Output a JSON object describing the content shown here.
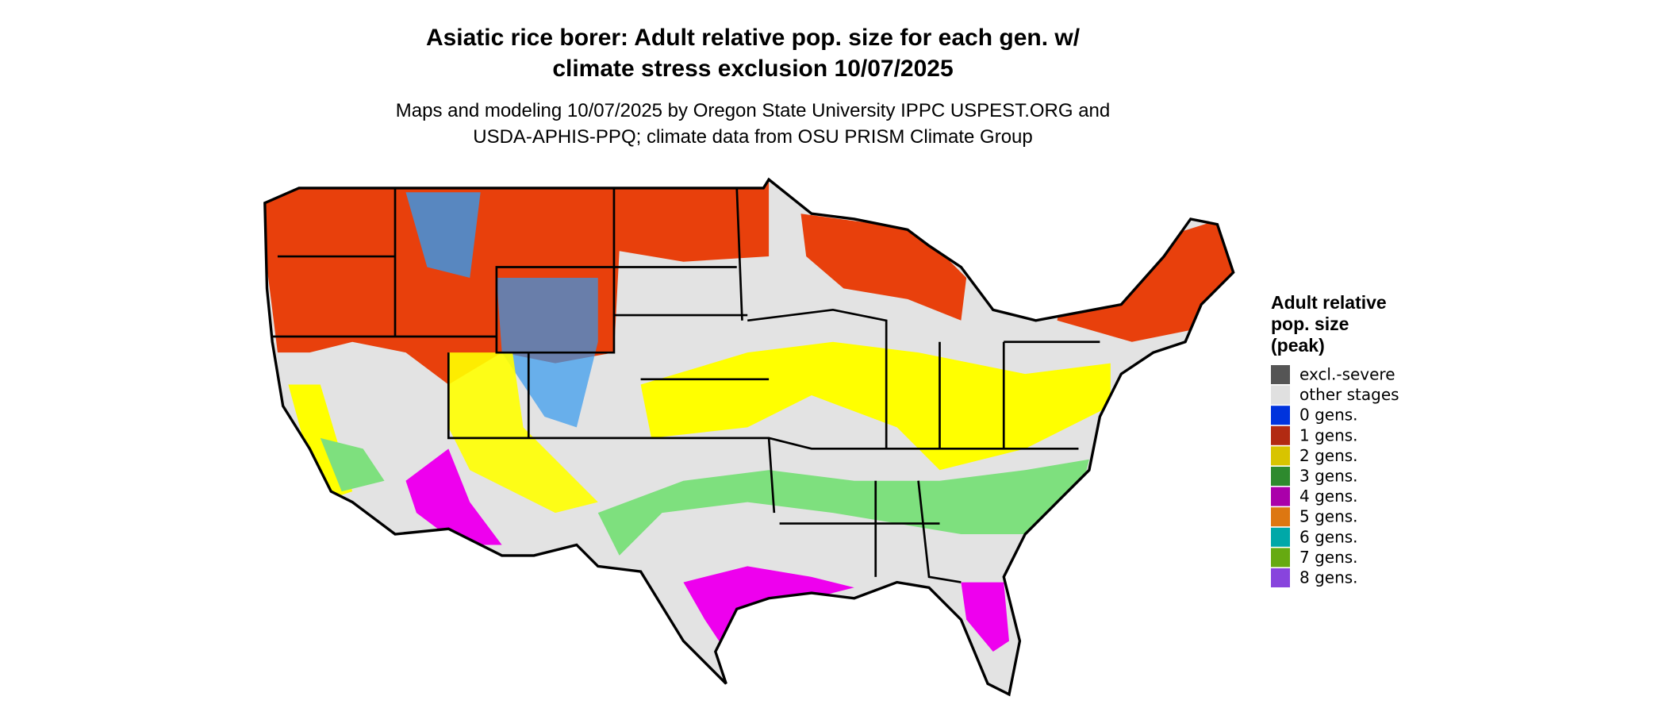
{
  "title": [
    "Asiatic rice borer: Adult relative pop. size for each gen. w/",
    "climate stress exclusion 10/07/2025"
  ],
  "subtitle": [
    "Maps and modeling 10/07/2025 by Oregon State University IPPC USPEST.ORG and",
    "USDA-APHIS-PPQ; climate data from OSU PRISM Climate Group"
  ],
  "legend": {
    "title": [
      "Adult relative",
      "pop. size",
      "(peak)"
    ],
    "items": [
      {
        "label": "excl.-severe",
        "color": "#555555"
      },
      {
        "label": "other stages",
        "color": "#e0e0e0"
      },
      {
        "label": "0 gens.",
        "color": "#0033dd"
      },
      {
        "label": "1 gens.",
        "color": "#b22a12"
      },
      {
        "label": "2 gens.",
        "color": "#d8c400"
      },
      {
        "label": "3 gens.",
        "color": "#2e8a2e"
      },
      {
        "label": "4 gens.",
        "color": "#aa00aa"
      },
      {
        "label": "5 gens.",
        "color": "#dd7711"
      },
      {
        "label": "6 gens.",
        "color": "#00a8a8"
      },
      {
        "label": "7 gens.",
        "color": "#66aa11"
      },
      {
        "label": "8 gens.",
        "color": "#8844dd"
      }
    ]
  }
}
